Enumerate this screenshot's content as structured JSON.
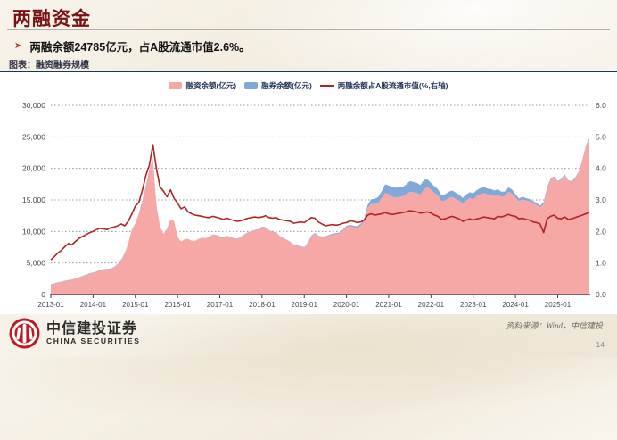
{
  "page": {
    "title": "两融资金",
    "bullet_marker": "➤",
    "bullet": "两融余额24785亿元，占A股流通市值2.6%。",
    "chart_caption": "图表：融资融券规模",
    "source": "资料来源：Wind，中信建投",
    "page_number": "14"
  },
  "logo": {
    "cn": "中信建投证券",
    "en": "CHINA SECURITIES"
  },
  "colors": {
    "title_red": "#7c1114",
    "navy_rule": "#17375e",
    "area_pink": "#f5a8a6",
    "area_blue": "#7fa9d9",
    "line_red": "#b22323"
  },
  "chart_data": {
    "type": "area",
    "title": "融资融券规模",
    "grid": "horizontal-dotted",
    "legend_position": "top-center",
    "x_interval": "monthly",
    "x_start": "2013-01",
    "x_end": "2025-10",
    "x_tick_labels": [
      "2013-01",
      "2014-01",
      "2015-01",
      "2016-01",
      "2017-01",
      "2018-01",
      "2019-01",
      "2020-01",
      "2021-01",
      "2022-01",
      "2023-01",
      "2024-01",
      "2025-01"
    ],
    "ylim_left": [
      0,
      30000
    ],
    "ylim_right": [
      0,
      6.0
    ],
    "yticks_left": [
      0,
      5000,
      10000,
      15000,
      20000,
      25000,
      30000
    ],
    "yticks_right": [
      0.0,
      1.0,
      2.0,
      3.0,
      4.0,
      5.0,
      6.0
    ],
    "legend": [
      {
        "label": "融资余额(亿元)",
        "type": "area",
        "color": "#f5a8a6"
      },
      {
        "label": "融券余额(亿元)",
        "type": "area",
        "color": "#7fa9d9"
      },
      {
        "label": "两融余额占A股流通市值(%,右轴)",
        "type": "line",
        "color": "#b22323"
      }
    ],
    "series": [
      {
        "name": "融资余额(亿元)",
        "axis": "left",
        "unit": "亿元",
        "values": [
          1600,
          1750,
          1900,
          2000,
          2150,
          2250,
          2350,
          2500,
          2700,
          2900,
          3100,
          3300,
          3450,
          3600,
          3850,
          3950,
          4000,
          4050,
          4300,
          4800,
          5500,
          6500,
          8000,
          10200,
          11200,
          12800,
          14800,
          17200,
          19800,
          21500,
          14200,
          10800,
          9600,
          10400,
          11900,
          11600,
          9100,
          8400,
          8700,
          8800,
          8500,
          8500,
          8800,
          9000,
          8900,
          9100,
          9500,
          9400,
          9200,
          9000,
          9300,
          9100,
          8900,
          8800,
          9100,
          9500,
          9800,
          10000,
          10200,
          10300,
          10700,
          10600,
          10100,
          9900,
          9800,
          9200,
          8900,
          8600,
          8300,
          7800,
          7700,
          7600,
          7400,
          8100,
          9200,
          9700,
          9200,
          9100,
          9100,
          9300,
          9500,
          9600,
          9700,
          10200,
          10700,
          10900,
          10700,
          10600,
          10900,
          11600,
          13700,
          14400,
          14300,
          14500,
          15300,
          16100,
          15900,
          15500,
          15400,
          15500,
          15600,
          15900,
          16300,
          16200,
          16100,
          15800,
          16700,
          17100,
          16600,
          16100,
          15700,
          14800,
          14900,
          15300,
          15500,
          15200,
          14900,
          14400,
          14900,
          15300,
          15100,
          15600,
          15900,
          16100,
          15900,
          15800,
          15600,
          15800,
          15500,
          15600,
          16300,
          16000,
          15400,
          14800,
          15100,
          14900,
          14800,
          14500,
          14200,
          13800,
          14400,
          16800,
          18300,
          18600,
          17900,
          18200,
          19000,
          18000,
          17900,
          18500,
          19400,
          21200,
          23500,
          24650
        ]
      },
      {
        "name": "融券余额(亿元)",
        "axis": "left",
        "unit": "亿元",
        "stacked_on": "融资余额(亿元)",
        "values": [
          30,
          32,
          35,
          38,
          40,
          42,
          45,
          48,
          50,
          55,
          58,
          60,
          62,
          65,
          68,
          70,
          72,
          74,
          76,
          78,
          80,
          75,
          70,
          68,
          70,
          75,
          80,
          85,
          90,
          95,
          40,
          30,
          25,
          28,
          30,
          30,
          28,
          26,
          27,
          28,
          28,
          29,
          30,
          32,
          34,
          36,
          38,
          40,
          42,
          44,
          46,
          48,
          50,
          52,
          54,
          56,
          58,
          60,
          62,
          64,
          66,
          68,
          70,
          72,
          74,
          76,
          78,
          80,
          82,
          84,
          86,
          88,
          90,
          95,
          100,
          105,
          110,
          115,
          120,
          125,
          130,
          135,
          140,
          137,
          150,
          180,
          200,
          230,
          280,
          350,
          500,
          700,
          850,
          950,
          1100,
          1370,
          1400,
          1500,
          1550,
          1500,
          1480,
          1550,
          1700,
          1650,
          1600,
          1550,
          1500,
          1150,
          1100,
          1050,
          1000,
          950,
          960,
          980,
          1000,
          980,
          950,
          920,
          960,
          950,
          940,
          960,
          950,
          940,
          930,
          920,
          900,
          880,
          800,
          750,
          700,
          650,
          500,
          430,
          400,
          380,
          360,
          330,
          300,
          280,
          250,
          200,
          150,
          120,
          110,
          105,
          100,
          100,
          100,
          100,
          110,
          120,
          130,
          135
        ]
      },
      {
        "name": "两融余额占A股流通市值(%,右轴)",
        "axis": "right",
        "unit": "%",
        "values": [
          1.1,
          1.2,
          1.32,
          1.4,
          1.52,
          1.62,
          1.58,
          1.68,
          1.78,
          1.84,
          1.9,
          1.96,
          2.0,
          2.06,
          2.1,
          2.08,
          2.06,
          2.12,
          2.14,
          2.18,
          2.24,
          2.18,
          2.32,
          2.55,
          2.8,
          2.92,
          3.3,
          3.78,
          4.1,
          4.75,
          4.0,
          3.42,
          3.28,
          3.1,
          3.32,
          3.05,
          2.9,
          2.72,
          2.78,
          2.62,
          2.56,
          2.52,
          2.5,
          2.48,
          2.45,
          2.44,
          2.48,
          2.45,
          2.42,
          2.38,
          2.42,
          2.38,
          2.35,
          2.32,
          2.34,
          2.38,
          2.42,
          2.44,
          2.46,
          2.44,
          2.46,
          2.5,
          2.44,
          2.42,
          2.44,
          2.38,
          2.36,
          2.34,
          2.32,
          2.26,
          2.28,
          2.3,
          2.28,
          2.36,
          2.44,
          2.42,
          2.3,
          2.24,
          2.18,
          2.2,
          2.22,
          2.2,
          2.22,
          2.26,
          2.28,
          2.34,
          2.32,
          2.28,
          2.3,
          2.36,
          2.52,
          2.56,
          2.52,
          2.54,
          2.56,
          2.6,
          2.56,
          2.54,
          2.56,
          2.58,
          2.6,
          2.62,
          2.66,
          2.64,
          2.62,
          2.58,
          2.6,
          2.62,
          2.58,
          2.52,
          2.48,
          2.38,
          2.4,
          2.44,
          2.48,
          2.44,
          2.4,
          2.32,
          2.36,
          2.4,
          2.36,
          2.4,
          2.42,
          2.46,
          2.44,
          2.42,
          2.4,
          2.48,
          2.46,
          2.5,
          2.54,
          2.5,
          2.48,
          2.4,
          2.42,
          2.38,
          2.36,
          2.3,
          2.28,
          2.24,
          1.96,
          2.4,
          2.48,
          2.52,
          2.42,
          2.4,
          2.46,
          2.38,
          2.4,
          2.44,
          2.48,
          2.52,
          2.56,
          2.6
        ]
      }
    ]
  }
}
